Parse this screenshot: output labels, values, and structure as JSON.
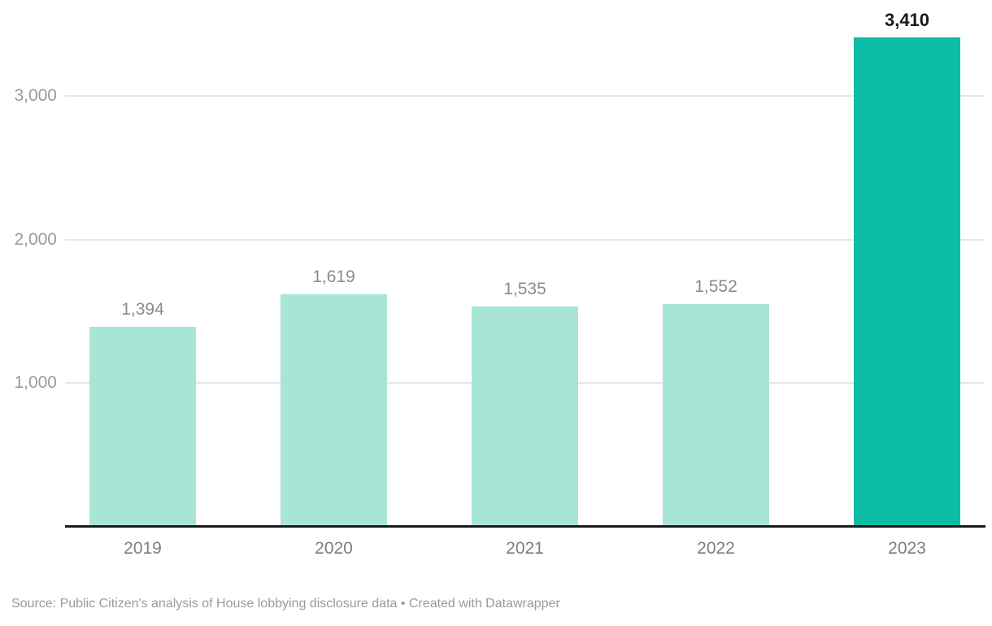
{
  "chart_data": {
    "type": "bar",
    "categories": [
      "2019",
      "2020",
      "2021",
      "2022",
      "2023"
    ],
    "values": [
      1394,
      1619,
      1535,
      1552,
      3410
    ],
    "value_labels": [
      "1,394",
      "1,619",
      "1,535",
      "1,552",
      "3,410"
    ],
    "highlight_index": 4,
    "title": "",
    "xlabel": "",
    "ylabel": "",
    "ylim": [
      0,
      3410
    ],
    "yticks": [
      1000,
      2000,
      3000
    ],
    "ytick_labels": [
      "1,000",
      "2,000",
      "3,000"
    ],
    "grid": true,
    "legend": "none",
    "colors": {
      "bar": "#a8e5d7",
      "bar_highlight": "#0dbca4",
      "value_label": "#8b8b8b",
      "value_label_highlight": "#1a1a1a",
      "gridline": "#e6e6e6",
      "axis_line": "#1a1b1e",
      "ytick_label": "#9b9b9b",
      "xtick_label": "#7d7d7d",
      "footer_text": "#9a9a9a",
      "background": "#ffffff"
    }
  },
  "footer": {
    "source_text": "Source: Public Citizen's analysis of House lobbying disclosure data • Created with Datawrapper"
  }
}
